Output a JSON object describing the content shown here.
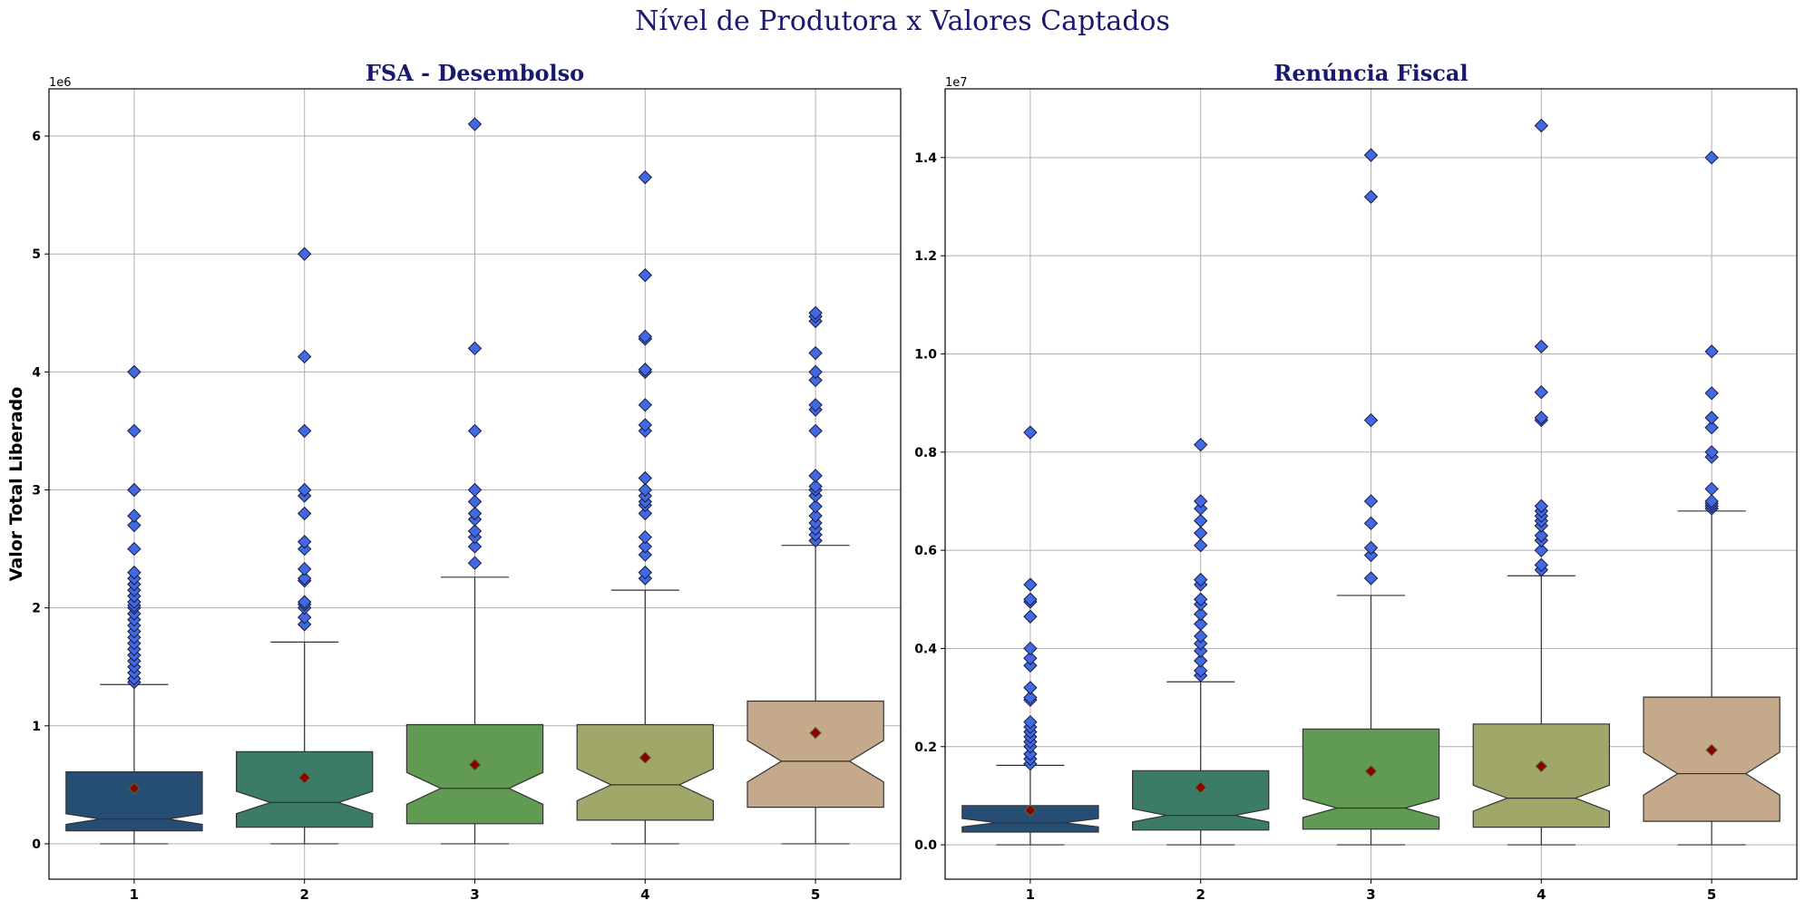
{
  "figure_title": "Nível de Produtora x Valores Captados",
  "chart_data": [
    {
      "type": "box",
      "title": "FSA - Desembolso",
      "xlabel": "",
      "ylabel": "Valor Total Liberado",
      "offset_label": "1e6",
      "ylim": [
        -0.3,
        6.4
      ],
      "yticks": [
        0,
        1,
        2,
        3,
        4,
        5,
        6
      ],
      "grid": true,
      "categories": [
        "1",
        "2",
        "3",
        "4",
        "5"
      ],
      "colors": [
        "#264d73",
        "#3b7b68",
        "#619a53",
        "#a1a768",
        "#c4a98b"
      ],
      "boxes": [
        {
          "category": "1",
          "whislo": 0.0,
          "q1": 0.11,
          "med": 0.21,
          "q3": 0.61,
          "whishi": 1.35,
          "mean": 0.47,
          "fliers": [
            1.37,
            1.4,
            1.45,
            1.5,
            1.55,
            1.6,
            1.65,
            1.7,
            1.75,
            1.8,
            1.85,
            1.9,
            1.95,
            2.0,
            2.02,
            2.05,
            2.1,
            2.15,
            2.2,
            2.25,
            2.3,
            2.5,
            2.7,
            2.78,
            3.0,
            3.5,
            4.0
          ]
        },
        {
          "category": "2",
          "whislo": 0.0,
          "q1": 0.14,
          "med": 0.35,
          "q3": 0.78,
          "whishi": 1.71,
          "mean": 0.56,
          "fliers": [
            1.86,
            1.92,
            2.0,
            2.03,
            2.05,
            2.23,
            2.25,
            2.33,
            2.5,
            2.56,
            2.8,
            2.95,
            3.0,
            3.5,
            4.13,
            5.0
          ]
        },
        {
          "category": "3",
          "whislo": 0.0,
          "q1": 0.17,
          "med": 0.47,
          "q3": 1.01,
          "whishi": 2.26,
          "mean": 0.67,
          "fliers": [
            2.38,
            2.52,
            2.6,
            2.65,
            2.75,
            2.8,
            2.9,
            3.0,
            3.5,
            4.2,
            6.1
          ]
        },
        {
          "category": "4",
          "whislo": 0.0,
          "q1": 0.2,
          "med": 0.5,
          "q3": 1.01,
          "whishi": 2.15,
          "mean": 0.73,
          "fliers": [
            2.25,
            2.3,
            2.45,
            2.52,
            2.6,
            2.8,
            2.87,
            2.9,
            2.95,
            3.0,
            3.1,
            3.5,
            3.55,
            3.72,
            4.0,
            4.02,
            4.28,
            4.3,
            4.82,
            5.65
          ]
        },
        {
          "category": "5",
          "whislo": 0.0,
          "q1": 0.31,
          "med": 0.7,
          "q3": 1.21,
          "whishi": 2.53,
          "mean": 0.94,
          "fliers": [
            2.57,
            2.62,
            2.67,
            2.72,
            2.78,
            2.86,
            2.95,
            3.0,
            3.03,
            3.12,
            3.5,
            3.68,
            3.72,
            3.93,
            4.0,
            4.16,
            4.43,
            4.47,
            4.5
          ]
        }
      ]
    },
    {
      "type": "box",
      "title": "Renúncia Fiscal",
      "xlabel": "",
      "ylabel": "",
      "offset_label": "1e7",
      "ylim": [
        -0.07,
        1.54
      ],
      "yticks": [
        0.0,
        0.2,
        0.4,
        0.6,
        0.8,
        1.0,
        1.2,
        1.4
      ],
      "grid": true,
      "categories": [
        "1",
        "2",
        "3",
        "4",
        "5"
      ],
      "colors": [
        "#264d73",
        "#3b7b68",
        "#619a53",
        "#a1a768",
        "#c4a98b"
      ],
      "boxes": [
        {
          "category": "1",
          "whislo": 0.0,
          "q1": 0.026,
          "med": 0.045,
          "q3": 0.08,
          "whishi": 0.162,
          "mean": 0.07,
          "fliers": [
            0.165,
            0.175,
            0.185,
            0.2,
            0.21,
            0.22,
            0.23,
            0.24,
            0.25,
            0.295,
            0.3,
            0.32,
            0.365,
            0.38,
            0.4,
            0.465,
            0.495,
            0.5,
            0.53,
            0.84
          ]
        },
        {
          "category": "2",
          "whislo": 0.0,
          "q1": 0.03,
          "med": 0.06,
          "q3": 0.151,
          "whishi": 0.332,
          "mean": 0.117,
          "fliers": [
            0.345,
            0.355,
            0.375,
            0.395,
            0.41,
            0.425,
            0.45,
            0.47,
            0.49,
            0.5,
            0.53,
            0.54,
            0.61,
            0.635,
            0.66,
            0.685,
            0.7,
            0.815
          ]
        },
        {
          "category": "3",
          "whislo": 0.0,
          "q1": 0.032,
          "med": 0.075,
          "q3": 0.236,
          "whishi": 0.508,
          "mean": 0.15,
          "fliers": [
            0.543,
            0.59,
            0.605,
            0.655,
            0.7,
            0.865,
            1.32,
            1.405
          ]
        },
        {
          "category": "4",
          "whislo": 0.0,
          "q1": 0.036,
          "med": 0.095,
          "q3": 0.246,
          "whishi": 0.548,
          "mean": 0.16,
          "fliers": [
            0.56,
            0.57,
            0.6,
            0.62,
            0.63,
            0.65,
            0.66,
            0.67,
            0.68,
            0.69,
            0.865,
            0.87,
            0.922,
            1.015,
            1.465
          ]
        },
        {
          "category": "5",
          "whislo": 0.0,
          "q1": 0.048,
          "med": 0.145,
          "q3": 0.301,
          "whishi": 0.68,
          "mean": 0.193,
          "fliers": [
            0.685,
            0.69,
            0.695,
            0.7,
            0.725,
            0.79,
            0.8,
            0.85,
            0.87,
            0.92,
            1.005,
            1.4
          ]
        }
      ]
    }
  ]
}
